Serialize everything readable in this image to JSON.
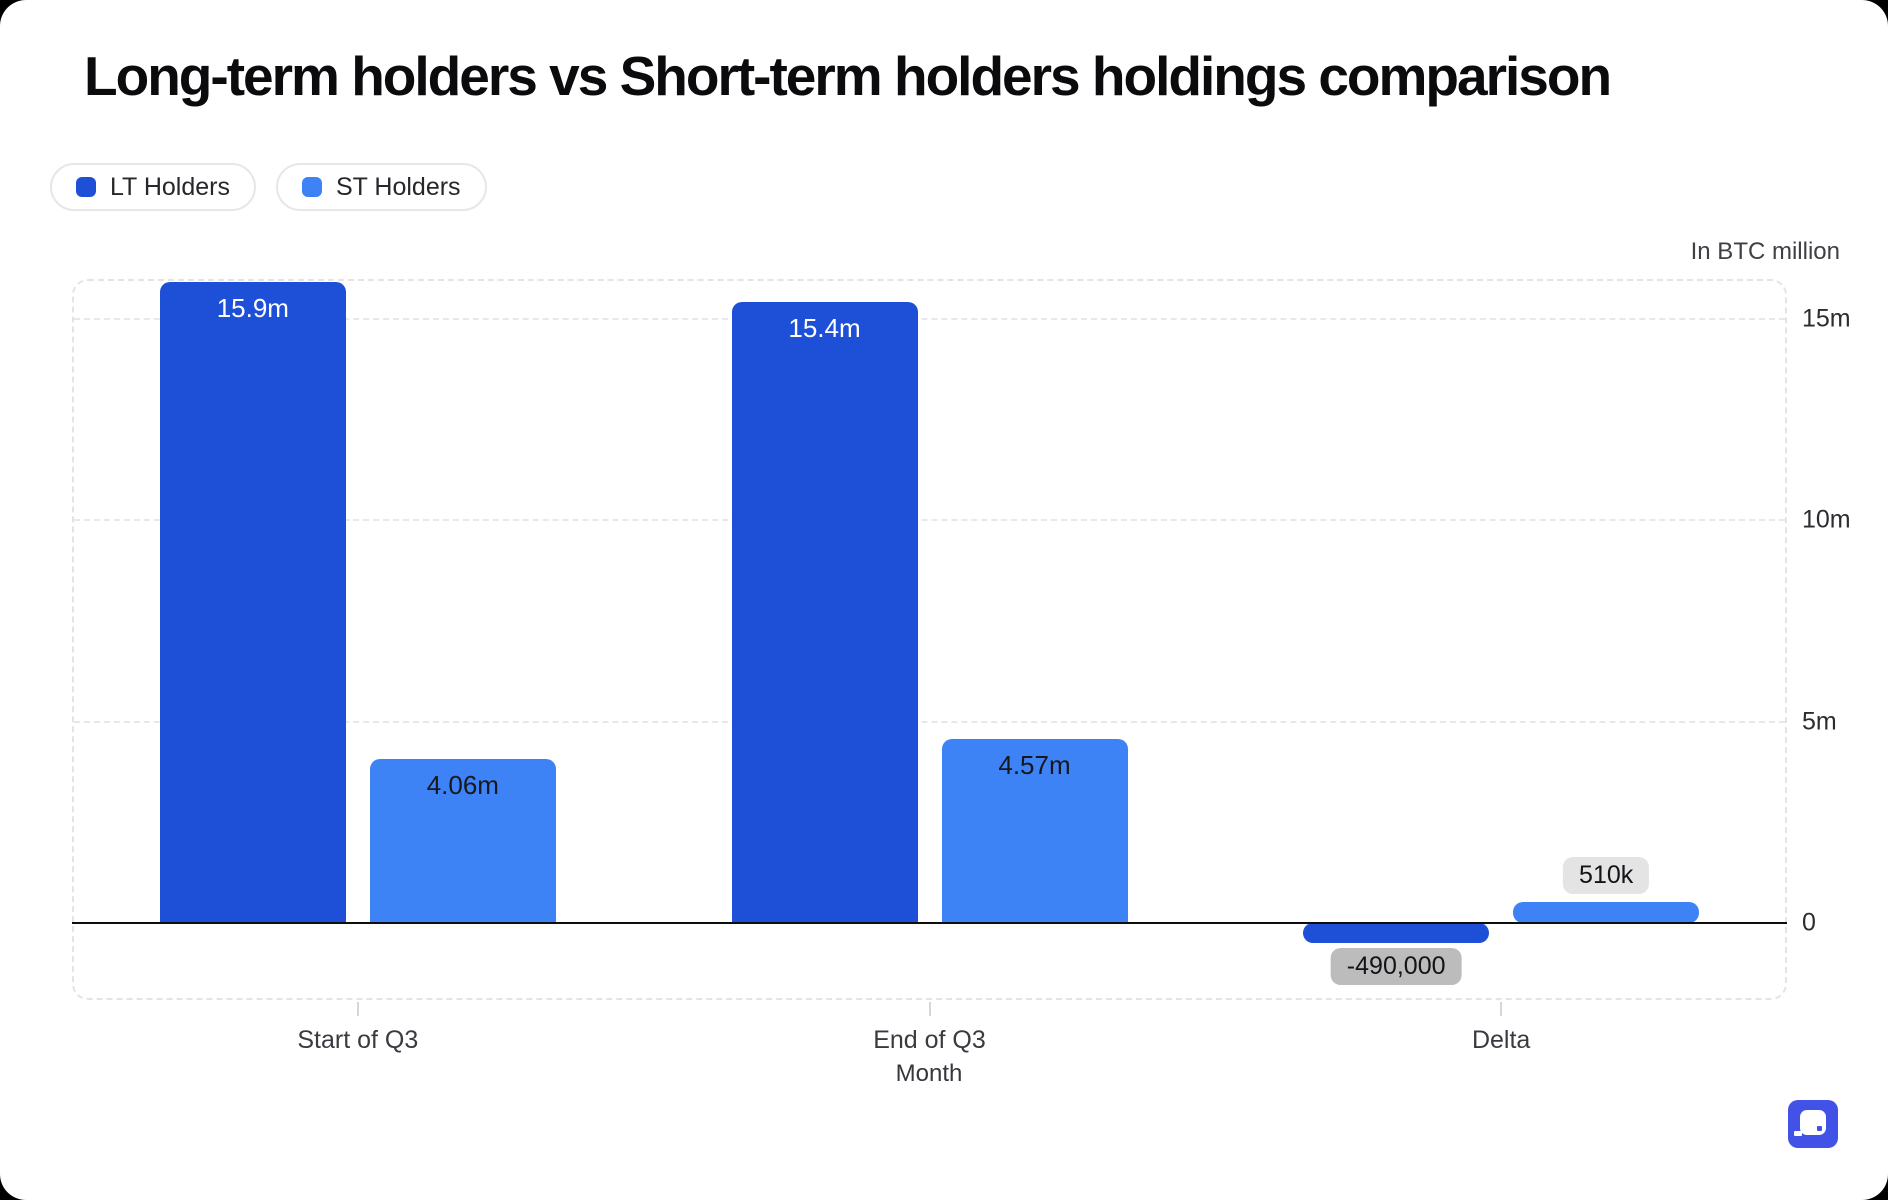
{
  "chart_data": {
    "type": "bar",
    "title": "Long-term holders vs Short-term holders holdings comparison",
    "categories": [
      "Start of Q3",
      "End of Q3",
      "Delta"
    ],
    "series": [
      {
        "name": "LT Holders",
        "color": "#1e4fd7",
        "values": [
          15.9,
          15.4,
          -0.49
        ],
        "labels": [
          "15.9m",
          "15.4m",
          "-490,000"
        ]
      },
      {
        "name": "ST Holders",
        "color": "#3d83f6",
        "values": [
          4.06,
          4.57,
          0.51
        ],
        "labels": [
          "4.06m",
          "4.57m",
          "510k"
        ]
      }
    ],
    "xlabel": "Month",
    "unit_note": "In BTC million",
    "y_ticks": [
      {
        "value": 0,
        "label": "0"
      },
      {
        "value": 5,
        "label": "5m"
      },
      {
        "value": 10,
        "label": "10m"
      },
      {
        "value": 15,
        "label": "15m"
      }
    ],
    "ylim": [
      -1.9,
      16
    ],
    "grid": "horizontal-dashed",
    "legend_position": "top-left",
    "label_style": {
      "inside_label_color_lt": "#ffffff",
      "inside_label_color_st": "#17181c",
      "badge_positive_bg": "#e4e4e4",
      "badge_negative_bg": "#bcbcbc"
    }
  },
  "watermark": {
    "icon": "speech-bubble-logo",
    "bg": "#4352e6"
  }
}
